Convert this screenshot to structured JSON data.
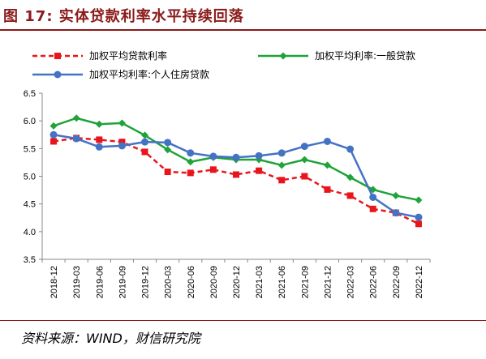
{
  "header": {
    "title": "图 17:  实体贷款利率水平持续回落"
  },
  "footer": {
    "source": "资料来源：WIND，财信研究院"
  },
  "colors": {
    "title": "#8b1a1a",
    "series_red": "#e8161c",
    "series_green": "#1fa33a",
    "series_blue": "#4472c4"
  },
  "chart_data": {
    "type": "line",
    "title": "",
    "xlabel": "",
    "ylabel": "",
    "ylim": [
      3.5,
      6.5
    ],
    "yticks": [
      "6.5",
      "6.0",
      "5.5",
      "5.0",
      "4.5",
      "4.0",
      "3.5"
    ],
    "grid": false,
    "legend_position": "top",
    "categories": [
      "2018-12",
      "2019-03",
      "2019-06",
      "2019-09",
      "2019-12",
      "2020-03",
      "2020-06",
      "2020-09",
      "2020-12",
      "2021-03",
      "2021-06",
      "2021-09",
      "2021-12",
      "2022-03",
      "2022-06",
      "2022-09",
      "2022-12"
    ],
    "series": [
      {
        "name": "加权平均贷款利率",
        "color": "#e8161c",
        "style": "dashed-square",
        "values": [
          5.63,
          5.69,
          5.66,
          5.62,
          5.44,
          5.08,
          5.06,
          5.12,
          5.03,
          5.1,
          4.93,
          5.0,
          4.76,
          4.65,
          4.41,
          4.34,
          4.14
        ]
      },
      {
        "name": "加权平均利率:一般贷款",
        "color": "#1fa33a",
        "style": "solid-diamond",
        "values": [
          5.91,
          6.05,
          5.94,
          5.96,
          5.74,
          5.48,
          5.26,
          5.34,
          5.3,
          5.3,
          5.2,
          5.3,
          5.2,
          4.98,
          4.76,
          4.65,
          4.57
        ]
      },
      {
        "name": "加权平均利率:个人住房贷款",
        "color": "#4472c4",
        "style": "solid-circle",
        "values": [
          5.75,
          5.68,
          5.53,
          5.55,
          5.62,
          5.61,
          5.42,
          5.36,
          5.34,
          5.37,
          5.42,
          5.54,
          5.63,
          5.49,
          4.62,
          4.34,
          4.26
        ]
      }
    ]
  }
}
